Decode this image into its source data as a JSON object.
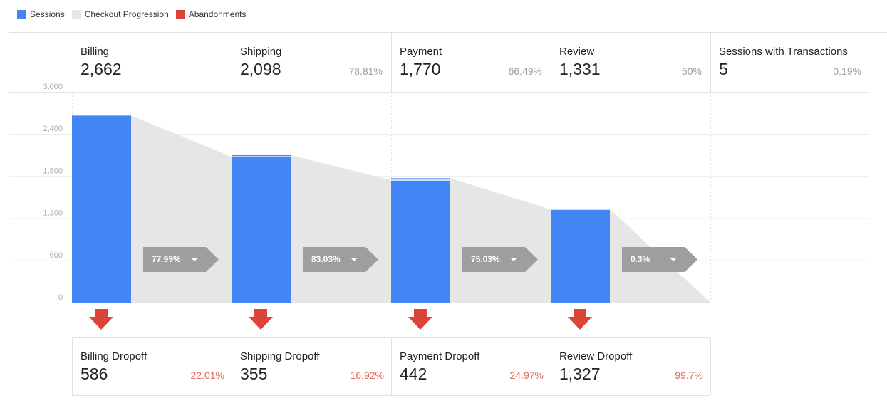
{
  "legend": [
    {
      "label": "Sessions",
      "color": "#4285f4"
    },
    {
      "label": "Checkout Progression",
      "color": "#e6e6e6"
    },
    {
      "label": "Abandonments",
      "color": "#db4437"
    }
  ],
  "chart_data": {
    "type": "bar",
    "title": "",
    "xlabel": "",
    "ylabel": "",
    "ylim": [
      0,
      3000
    ],
    "y_ticks": [
      "0",
      "600",
      "1,200",
      "1,800",
      "2,400",
      "3,000"
    ],
    "categories": [
      "Billing",
      "Shipping",
      "Payment",
      "Review",
      "Sessions with Transactions"
    ],
    "series": [
      {
        "name": "Sessions",
        "values": [
          2662,
          2098,
          1770,
          1331,
          5
        ]
      }
    ],
    "continued": [
      2076,
      1743,
      1328,
      4
    ],
    "progression_rates": [
      "77.99%",
      "83.03%",
      "75.03%",
      "0.3%"
    ],
    "abandonments": [
      586,
      355,
      442,
      1327
    ],
    "grid": true,
    "legend_position": "top-left"
  },
  "steps": [
    {
      "name": "Billing",
      "value": "2,662",
      "pct": ""
    },
    {
      "name": "Shipping",
      "value": "2,098",
      "pct": "78.81%"
    },
    {
      "name": "Payment",
      "value": "1,770",
      "pct": "66.49%"
    },
    {
      "name": "Review",
      "value": "1,331",
      "pct": "50%"
    },
    {
      "name": "Sessions with Transactions",
      "value": "5",
      "pct": "0.19%"
    }
  ],
  "dropoffs": [
    {
      "name": "Billing Dropoff",
      "value": "586",
      "pct": "22.01%"
    },
    {
      "name": "Shipping Dropoff",
      "value": "355",
      "pct": "16.92%"
    },
    {
      "name": "Payment Dropoff",
      "value": "442",
      "pct": "24.97%"
    },
    {
      "name": "Review Dropoff",
      "value": "1,327",
      "pct": "99.7%"
    }
  ],
  "colors": {
    "sessions": "#4285f4",
    "progression": "#e6e6e6",
    "abandon": "#db4437",
    "chevron": "#9e9e9e"
  }
}
